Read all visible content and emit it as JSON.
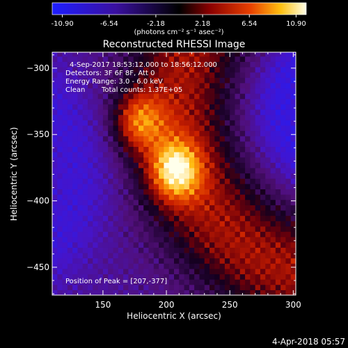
{
  "chart_data": {
    "type": "heatmap",
    "title": "Reconstructed RHESSI Image",
    "xlabel": "Heliocentric X (arcsec)",
    "ylabel": "Heliocentric Y (arcsec)",
    "xlim": [
      110,
      302
    ],
    "ylim": [
      -471,
      -288
    ],
    "xticks": [
      150,
      200,
      250,
      300
    ],
    "yticks": [
      -300,
      -350,
      -400,
      -450
    ],
    "colorbar": {
      "ticks": [
        "-10.90",
        "-6.54",
        "-2.18",
        "2.18",
        "6.54",
        "10.90"
      ],
      "unit_label": "(photons cm⁻² s⁻¹ asec⁻²)",
      "range": [
        -10.9,
        10.9
      ]
    },
    "annotations": {
      "time_range": "4-Sep-2017 18:53:12.000 to 18:56:12.000",
      "detectors": "Detectors: 3F 6F 8F, Att 0",
      "energy_range": "Energy Range: 3.0 - 6.0 keV",
      "clean": "Clean",
      "total_counts": "Total counts: 1.37E+05",
      "peak_position": "Position of Peak = [207,-377]"
    },
    "peak": [
      207,
      -377
    ],
    "sources": [
      {
        "x": 207,
        "y": -377,
        "amplitude": 10.9
      },
      {
        "x": 178,
        "y": -340,
        "amplitude": 8.5
      }
    ],
    "footer_date": "4-Apr-2018 05:57"
  },
  "colors": {
    "low": "#2020ff",
    "mid_low": "#3a0850",
    "zero": "#000000",
    "mid_high": "#c81e00",
    "high": "#ffffff"
  }
}
